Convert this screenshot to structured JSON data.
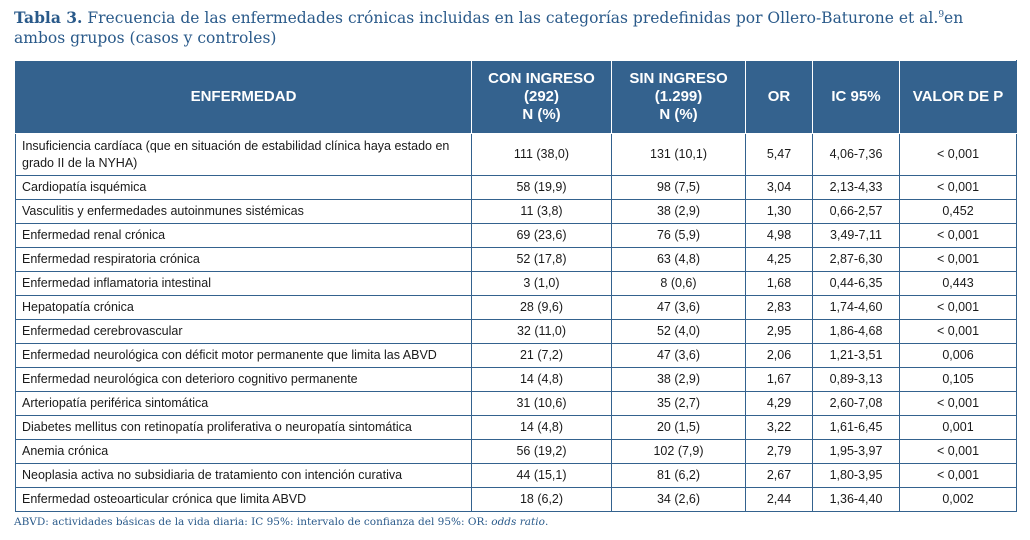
{
  "caption": {
    "label": "Tabla 3.",
    "text": "Frecuencia de las enfermedades crónicas incluidas en las categorías predefinidas por Ollero-Baturone et al.",
    "ref": "9",
    "text_end": "en ambos grupos (casos y controles)"
  },
  "headers": {
    "col1": "ENFERMEDAD",
    "col2": [
      "CON INGRESO",
      "(292)",
      "N (%)"
    ],
    "col3": [
      "SIN INGRESO",
      "(1.299)",
      "N (%)"
    ],
    "col4": "OR",
    "col5": "IC 95%",
    "col6": "VALOR DE P"
  },
  "rows": [
    {
      "disease": "Insuficiencia cardíaca (que en situación de estabilidad clínica haya estado en grado II de la NYHA)",
      "con": "111 (38,0)",
      "sin": "131 (10,1)",
      "or": "5,47",
      "ic": "4,06-7,36",
      "p": "< 0,001"
    },
    {
      "disease": "Cardiopatía isquémica",
      "con": "58 (19,9)",
      "sin": "98 (7,5)",
      "or": "3,04",
      "ic": "2,13-4,33",
      "p": "< 0,001"
    },
    {
      "disease": "Vasculitis y enfermedades autoinmunes sistémicas",
      "con": "11 (3,8)",
      "sin": "38 (2,9)",
      "or": "1,30",
      "ic": "0,66-2,57",
      "p": "0,452"
    },
    {
      "disease": "Enfermedad renal crónica",
      "con": "69 (23,6)",
      "sin": "76 (5,9)",
      "or": "4,98",
      "ic": "3,49-7,11",
      "p": "< 0,001"
    },
    {
      "disease": "Enfermedad respiratoria crónica",
      "con": "52 (17,8)",
      "sin": "63 (4,8)",
      "or": "4,25",
      "ic": "2,87-6,30",
      "p": "< 0,001"
    },
    {
      "disease": "Enfermedad inflamatoria intestinal",
      "con": "3 (1,0)",
      "sin": "8 (0,6)",
      "or": "1,68",
      "ic": "0,44-6,35",
      "p": "0,443"
    },
    {
      "disease": "Hepatopatía crónica",
      "con": "28 (9,6)",
      "sin": "47 (3,6)",
      "or": "2,83",
      "ic": "1,74-4,60",
      "p": "< 0,001"
    },
    {
      "disease": "Enfermedad cerebrovascular",
      "con": "32 (11,0)",
      "sin": "52 (4,0)",
      "or": "2,95",
      "ic": "1,86-4,68",
      "p": "< 0,001"
    },
    {
      "disease": "Enfermedad neurológica con déficit motor permanente que limita las ABVD",
      "con": "21 (7,2)",
      "sin": "47 (3,6)",
      "or": "2,06",
      "ic": "1,21-3,51",
      "p": "0,006"
    },
    {
      "disease": "Enfermedad neurológica con deterioro cognitivo permanente",
      "con": "14 (4,8)",
      "sin": "38 (2,9)",
      "or": "1,67",
      "ic": "0,89-3,13",
      "p": "0,105"
    },
    {
      "disease": "Arteriopatía periférica sintomática",
      "con": "31 (10,6)",
      "sin": "35 (2,7)",
      "or": "4,29",
      "ic": "2,60-7,08",
      "p": "< 0,001"
    },
    {
      "disease": "Diabetes mellitus con retinopatía proliferativa o neuropatía sintomática",
      "con": "14 (4,8)",
      "sin": "20 (1,5)",
      "or": "3,22",
      "ic": "1,61-6,45",
      "p": "0,001"
    },
    {
      "disease": "Anemia crónica",
      "con": "56 (19,2)",
      "sin": "102 (7,9)",
      "or": "2,79",
      "ic": "1,95-3,97",
      "p": "< 0,001"
    },
    {
      "disease": "Neoplasia activa no subsidiaria de tratamiento con intención curativa",
      "con": "44 (15,1)",
      "sin": "81 (6,2)",
      "or": "2,67",
      "ic": "1,80-3,95",
      "p": "< 0,001"
    },
    {
      "disease": "Enfermedad osteoarticular crónica que limita ABVD",
      "con": "18 (6,2)",
      "sin": "34 (2,6)",
      "or": "2,44",
      "ic": "1,36-4,40",
      "p": "0,002"
    }
  ],
  "footnote": {
    "text": "ABVD: actividades básicas de la vida diaria: IC 95%: intervalo de confianza del 95%: OR: ",
    "italic": "odds ratio",
    "end": "."
  },
  "colors": {
    "header_bg": "#34628e",
    "caption": "#2a5a8a",
    "border": "#34628e"
  }
}
